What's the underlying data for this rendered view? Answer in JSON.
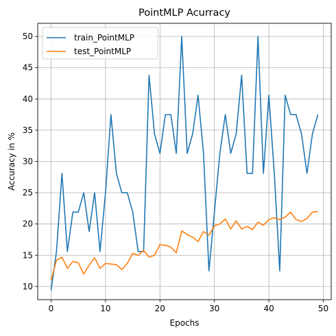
{
  "chart_data": {
    "type": "line",
    "title": "PointMLP Acurracy",
    "xlabel": "Epochs",
    "ylabel": "Accuracy in %",
    "xlim": [
      -2.45,
      51.45
    ],
    "ylim": [
      7.9,
      52.1
    ],
    "xticks": [
      0,
      10,
      20,
      30,
      40,
      50
    ],
    "yticks": [
      10,
      15,
      20,
      25,
      30,
      35,
      40,
      45,
      50
    ],
    "grid": true,
    "legend_position": "top-left",
    "x": [
      0,
      1,
      2,
      3,
      4,
      5,
      6,
      7,
      8,
      9,
      10,
      11,
      12,
      13,
      14,
      15,
      16,
      17,
      18,
      19,
      20,
      21,
      22,
      23,
      24,
      25,
      26,
      27,
      28,
      29,
      30,
      31,
      32,
      33,
      34,
      35,
      36,
      37,
      38,
      39,
      40,
      41,
      42,
      43,
      44,
      45,
      46,
      47,
      48,
      49
    ],
    "series": [
      {
        "name": "train_PointMLP",
        "color": "#1f77b4",
        "values": [
          9.4,
          15.6,
          28.1,
          15.6,
          21.9,
          21.9,
          25.0,
          18.8,
          25.0,
          15.6,
          25.0,
          37.5,
          28.1,
          25.0,
          25.0,
          21.9,
          15.6,
          15.6,
          43.8,
          34.4,
          31.3,
          37.5,
          37.5,
          31.3,
          50.0,
          31.3,
          34.4,
          40.6,
          31.3,
          12.5,
          21.9,
          31.3,
          37.5,
          31.3,
          34.4,
          43.8,
          28.1,
          28.1,
          50.0,
          28.1,
          40.6,
          28.1,
          12.5,
          40.6,
          37.5,
          37.5,
          34.4,
          28.1,
          34.4,
          37.5
        ]
      },
      {
        "name": "test_PointMLP",
        "color": "#ff7f0e",
        "values": [
          11.0,
          14.2,
          14.7,
          12.9,
          14.0,
          13.8,
          12.0,
          13.4,
          14.6,
          12.9,
          13.7,
          13.6,
          13.5,
          12.7,
          13.7,
          15.3,
          15.0,
          15.8,
          14.7,
          15.0,
          16.7,
          16.6,
          16.3,
          15.4,
          18.9,
          18.3,
          17.9,
          17.2,
          18.8,
          18.2,
          19.7,
          20.0,
          20.8,
          19.2,
          20.5,
          19.2,
          19.6,
          19.1,
          20.3,
          19.8,
          20.7,
          21.0,
          20.7,
          21.1,
          21.9,
          20.7,
          20.4,
          20.9,
          21.9,
          22.0
        ]
      }
    ]
  }
}
